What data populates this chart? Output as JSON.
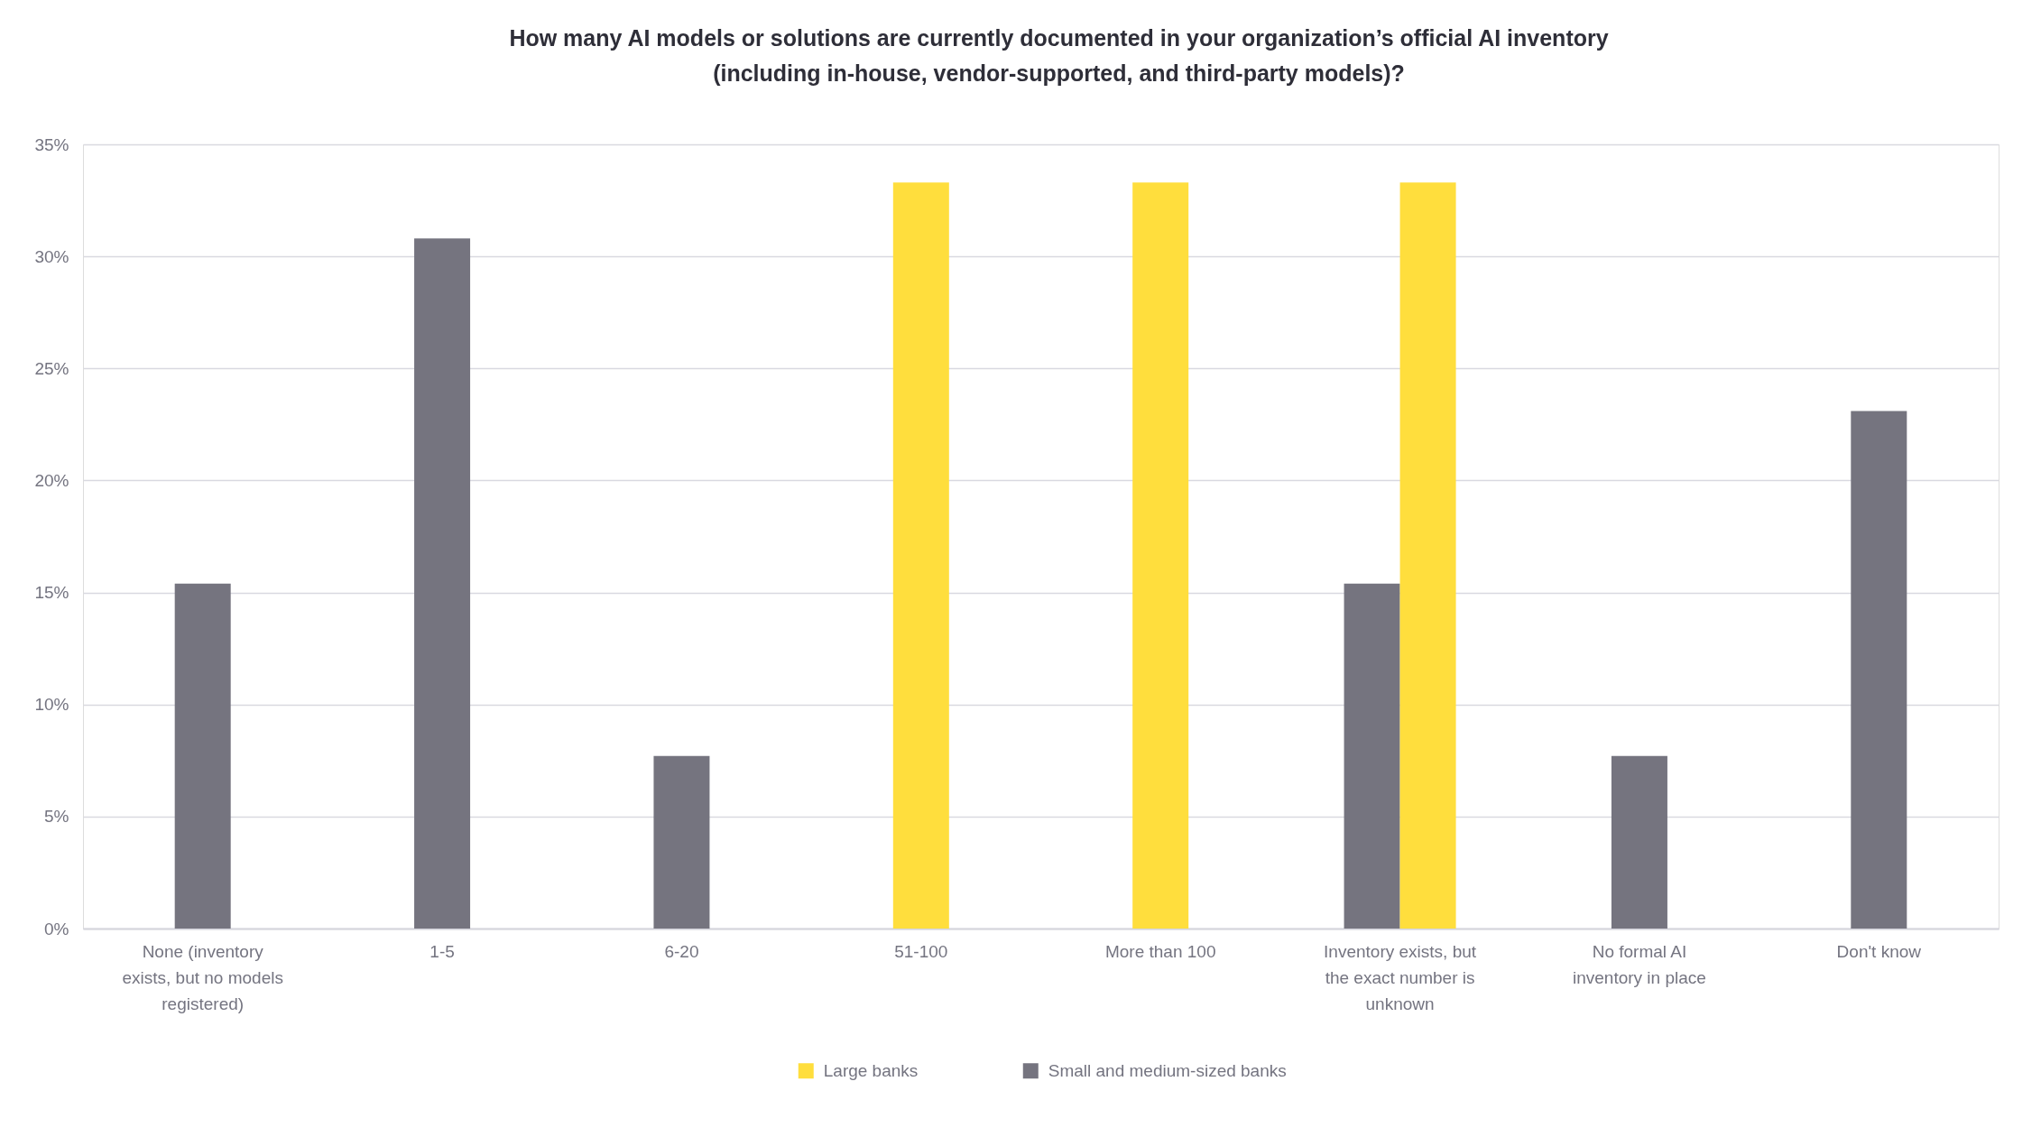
{
  "chart_data": {
    "type": "bar",
    "title": "How many AI models or solutions are currently documented in your organization’s official AI inventory (including in-house, vendor-supported, and third-party models)?",
    "categories": [
      "None (inventory exists, but no models registered)",
      "1-5",
      "6-20",
      "51-100",
      "More than 100",
      "Inventory exists, but the exact number is unknown",
      "No formal AI inventory in place",
      "Don't know"
    ],
    "series": [
      {
        "name": "Large banks",
        "color": "#ffde3d",
        "values": [
          null,
          null,
          null,
          33.3,
          33.3,
          33.3,
          null,
          null
        ]
      },
      {
        "name": "Small and medium-sized banks",
        "color": "#75747f",
        "values": [
          15.4,
          30.8,
          7.7,
          null,
          null,
          15.4,
          7.7,
          23.1
        ]
      }
    ],
    "ylim": [
      0,
      35
    ],
    "yticks": [
      {
        "value": 0,
        "label": "0%"
      },
      {
        "value": 5,
        "label": "5%"
      },
      {
        "value": 10,
        "label": "10%"
      },
      {
        "value": 15,
        "label": "15%"
      },
      {
        "value": 20,
        "label": "20%"
      },
      {
        "value": 25,
        "label": "25%"
      },
      {
        "value": 30,
        "label": "30%"
      },
      {
        "value": 35,
        "label": "35%"
      }
    ],
    "grid": "y",
    "legend": "bottom"
  }
}
